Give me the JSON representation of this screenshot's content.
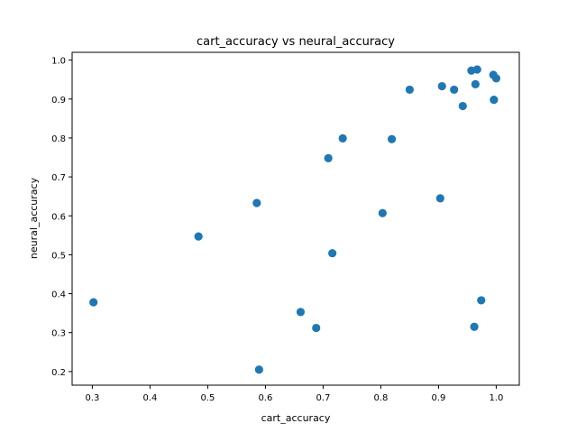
{
  "chart_data": {
    "type": "scatter",
    "title": "cart_accuracy vs neural_accuracy",
    "xlabel": "cart_accuracy",
    "ylabel": "neural_accuracy",
    "xlim": [
      0.265,
      1.04
    ],
    "ylim": [
      0.165,
      1.02
    ],
    "xticks": [
      0.3,
      0.4,
      0.5,
      0.6,
      0.7,
      0.8,
      0.9,
      1.0
    ],
    "yticks": [
      0.2,
      0.3,
      0.4,
      0.5,
      0.6,
      0.7,
      0.8,
      0.9,
      1.0
    ],
    "grid": false,
    "point_color": "#1f77b4",
    "points": [
      {
        "x": 0.302,
        "y": 0.378
      },
      {
        "x": 0.484,
        "y": 0.547
      },
      {
        "x": 0.585,
        "y": 0.633
      },
      {
        "x": 0.589,
        "y": 0.205
      },
      {
        "x": 0.661,
        "y": 0.353
      },
      {
        "x": 0.688,
        "y": 0.312
      },
      {
        "x": 0.709,
        "y": 0.748
      },
      {
        "x": 0.716,
        "y": 0.504
      },
      {
        "x": 0.734,
        "y": 0.799
      },
      {
        "x": 0.803,
        "y": 0.607
      },
      {
        "x": 0.819,
        "y": 0.797
      },
      {
        "x": 0.85,
        "y": 0.924
      },
      {
        "x": 0.903,
        "y": 0.645
      },
      {
        "x": 0.906,
        "y": 0.933
      },
      {
        "x": 0.927,
        "y": 0.924
      },
      {
        "x": 0.942,
        "y": 0.882
      },
      {
        "x": 0.957,
        "y": 0.973
      },
      {
        "x": 0.962,
        "y": 0.315
      },
      {
        "x": 0.964,
        "y": 0.938
      },
      {
        "x": 0.967,
        "y": 0.976
      },
      {
        "x": 0.974,
        "y": 0.383
      },
      {
        "x": 0.995,
        "y": 0.962
      },
      {
        "x": 0.996,
        "y": 0.898
      },
      {
        "x": 1.0,
        "y": 0.953
      }
    ]
  }
}
